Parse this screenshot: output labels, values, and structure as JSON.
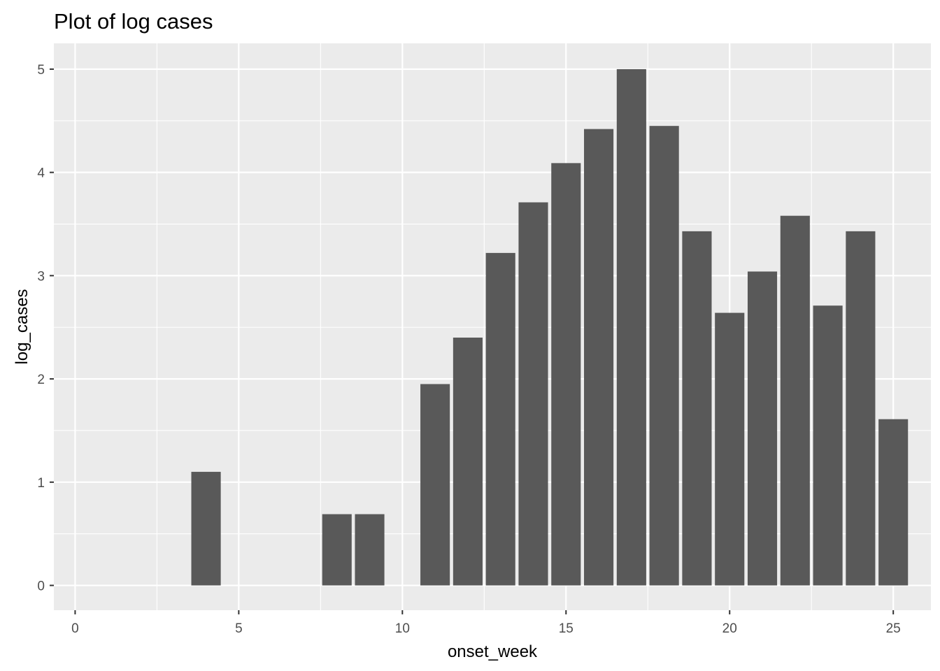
{
  "chart_data": {
    "type": "bar",
    "title": "Plot of log cases",
    "xlabel": "onset_week",
    "ylabel": "log_cases",
    "xlim": [
      -0.65,
      26.15
    ],
    "ylim": [
      -0.24,
      5.25
    ],
    "x_ticks": [
      0,
      5,
      10,
      15,
      20,
      25
    ],
    "x_tick_labels": [
      "0",
      "5",
      "10",
      "15",
      "20",
      "25"
    ],
    "y_ticks": [
      0,
      1,
      2,
      3,
      4,
      5
    ],
    "y_tick_labels": [
      "0",
      "1",
      "2",
      "3",
      "4",
      "5"
    ],
    "grid": true,
    "background": "#ebebeb",
    "grid_color": "#ffffff",
    "bar_color": "#595959",
    "x": [
      4,
      8,
      9,
      11,
      12,
      13,
      14,
      15,
      16,
      17,
      18,
      19,
      20,
      21,
      22,
      23,
      24,
      25
    ],
    "values": [
      1.1,
      0.69,
      0.69,
      1.95,
      2.4,
      3.22,
      3.71,
      4.09,
      4.42,
      5.0,
      4.45,
      3.43,
      2.64,
      3.04,
      3.58,
      2.71,
      3.43,
      1.61
    ]
  }
}
